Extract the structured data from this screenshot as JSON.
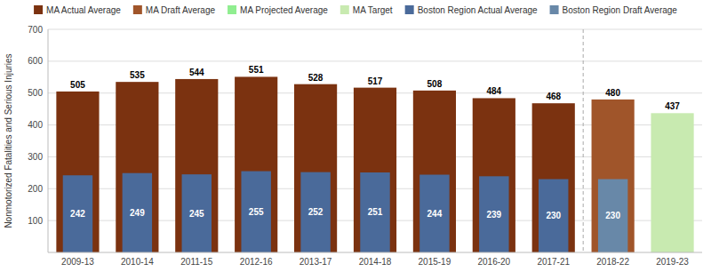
{
  "chart_data": {
    "type": "bar",
    "categories": [
      "2009-13",
      "2010-14",
      "2011-15",
      "2012-16",
      "2013-17",
      "2014-18",
      "2015-19",
      "2016-20",
      "2017-21",
      "2018-22",
      "2019-23"
    ],
    "series": [
      {
        "name": "MA Actual Average",
        "color": "#7B3210",
        "values": [
          505,
          535,
          544,
          551,
          528,
          517,
          508,
          484,
          468,
          null,
          null
        ]
      },
      {
        "name": "MA Draft Average",
        "color": "#A0552A",
        "values": [
          null,
          null,
          null,
          null,
          null,
          null,
          null,
          null,
          null,
          480,
          null
        ]
      },
      {
        "name": "MA Projected Average",
        "color": "#90EE90",
        "values": [
          null,
          null,
          null,
          null,
          null,
          null,
          null,
          null,
          null,
          null,
          null
        ]
      },
      {
        "name": "MA Target",
        "color": "#C8EAB0",
        "values": [
          null,
          null,
          null,
          null,
          null,
          null,
          null,
          null,
          null,
          null,
          437
        ]
      },
      {
        "name": "Boston Region Actual Average",
        "color": "#4A6A9A",
        "values": [
          242,
          249,
          245,
          255,
          252,
          251,
          244,
          239,
          230,
          null,
          null
        ]
      },
      {
        "name": "Boston Region Draft Average",
        "color": "#6888A8",
        "values": [
          null,
          null,
          null,
          null,
          null,
          null,
          null,
          null,
          null,
          230,
          null
        ]
      }
    ],
    "y_label": "Nonmotorized Fatalities and Serious Injuries",
    "ylim": [
      0,
      700
    ],
    "yticks": [
      100,
      200,
      300,
      400,
      500,
      600,
      700
    ],
    "grid": true,
    "legend": "top",
    "data_labels": true
  }
}
